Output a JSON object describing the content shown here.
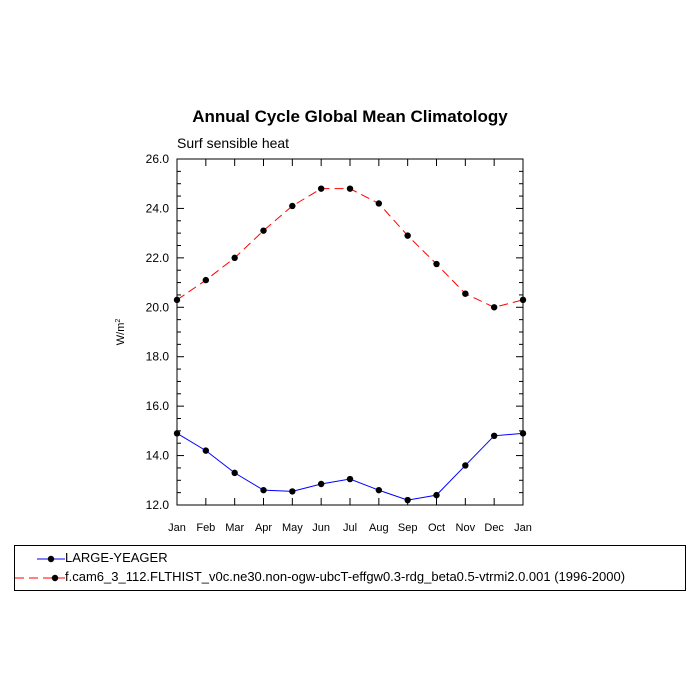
{
  "chart_data": {
    "type": "line",
    "title": "Annual Cycle Global Mean Climatology",
    "subtitle": "Surf sensible heat",
    "ylabel": "W/m",
    "ylabel_sup": "2",
    "categories": [
      "Jan",
      "Feb",
      "Mar",
      "Apr",
      "May",
      "Jun",
      "Jul",
      "Aug",
      "Sep",
      "Oct",
      "Nov",
      "Dec",
      "Jan"
    ],
    "ylim": [
      12.0,
      26.0
    ],
    "yticks": [
      "12.0",
      "14.0",
      "16.0",
      "18.0",
      "20.0",
      "22.0",
      "24.0",
      "26.0"
    ],
    "yminor_step": 0.5,
    "legend_position": "bottom",
    "series": [
      {
        "name": "LARGE-YEAGER",
        "color": "#0000ff",
        "dash": "solid",
        "values": [
          14.9,
          14.2,
          13.3,
          12.6,
          12.55,
          12.85,
          13.05,
          12.6,
          12.2,
          12.4,
          13.6,
          14.8,
          14.9
        ]
      },
      {
        "name": "f.cam6_3_112.FLTHIST_v0c.ne30.non-ogw-ubcT-effgw0.3-rdg_beta0.5-vtrmi2.0.001 (1996-2000)",
        "color": "#ff0000",
        "dash": "dashed",
        "values": [
          20.3,
          21.1,
          22.0,
          23.1,
          24.1,
          24.8,
          24.8,
          24.2,
          22.9,
          21.75,
          20.55,
          20.0,
          20.3
        ]
      }
    ]
  }
}
